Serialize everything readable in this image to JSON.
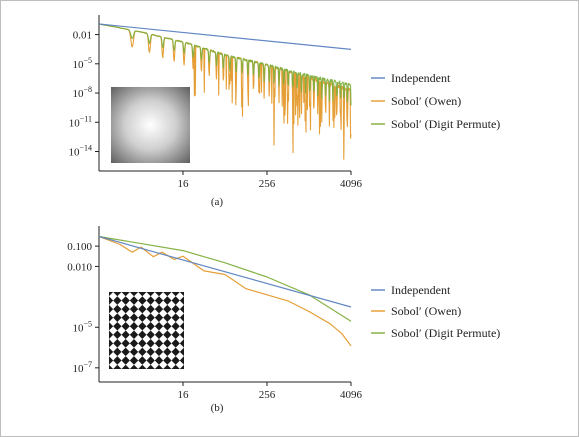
{
  "colors": {
    "independent": "#5b82c0",
    "owen": "#e59a2c",
    "digit": "#7fae3c"
  },
  "chart_data": [
    {
      "type": "line",
      "caption": "(a)",
      "log_x": true,
      "log_y": true,
      "xlim": [
        1,
        4096
      ],
      "ylim": [
        1e-16,
        0.5
      ],
      "xticks": [
        {
          "v": 16,
          "label": "16"
        },
        {
          "v": 256,
          "label": "256"
        },
        {
          "v": 4096,
          "label": "4096"
        }
      ],
      "yticks": [
        {
          "v": 0.01,
          "label": "0.01",
          "sup": ""
        },
        {
          "v": 1e-05,
          "label": "10",
          "sup": "−5"
        },
        {
          "v": 1e-08,
          "label": "10",
          "sup": "−8"
        },
        {
          "v": 1e-11,
          "label": "10",
          "sup": "−11"
        },
        {
          "v": 1e-14,
          "label": "10",
          "sup": "−14"
        }
      ],
      "legend": [
        "Independent",
        "Sobol′ (Owen)",
        "Sobol′ (Digit Permute)"
      ],
      "inset": "gaussian",
      "series": [
        {
          "name": "Independent",
          "color_key": "independent",
          "pattern": "straight",
          "x": [
            1,
            4096
          ],
          "y": [
            0.12,
            0.0003
          ]
        },
        {
          "name": "Sobol′ (Owen)",
          "color_key": "owen",
          "pattern": "osc",
          "amp": 3.2,
          "deep": true,
          "x": [
            1,
            4,
            16,
            64,
            256,
            1024,
            4096
          ],
          "y": [
            0.12,
            0.02,
            0.002,
            0.0001,
            1e-05,
            5e-07,
            3e-08
          ]
        },
        {
          "name": "Sobol′ (Digit Permute)",
          "color_key": "digit",
          "pattern": "osc",
          "amp": 1.6,
          "deep": false,
          "x": [
            1,
            4,
            16,
            64,
            256,
            1024,
            4096
          ],
          "y": [
            0.12,
            0.02,
            0.002,
            0.0001,
            1e-05,
            8e-07,
            1e-07
          ]
        }
      ]
    },
    {
      "type": "line",
      "caption": "(b)",
      "log_x": true,
      "log_y": true,
      "xlim": [
        1,
        4096
      ],
      "ylim": [
        2e-08,
        0.7
      ],
      "xticks": [
        {
          "v": 16,
          "label": "16"
        },
        {
          "v": 256,
          "label": "256"
        },
        {
          "v": 4096,
          "label": "4096"
        }
      ],
      "yticks": [
        {
          "v": 0.1,
          "label": "0.100",
          "sup": ""
        },
        {
          "v": 0.01,
          "label": "0.010",
          "sup": ""
        },
        {
          "v": 1e-05,
          "label": "10",
          "sup": "−5"
        },
        {
          "v": 1e-07,
          "label": "10",
          "sup": "−7"
        }
      ],
      "legend": [
        "Independent",
        "Sobol′ (Owen)",
        "Sobol′ (Digit Permute)"
      ],
      "inset": "checker",
      "series": [
        {
          "name": "Independent",
          "color_key": "independent",
          "pattern": "straight",
          "x": [
            1,
            4096
          ],
          "y": [
            0.3,
            0.0001
          ]
        },
        {
          "name": "Sobol′ (Owen)",
          "color_key": "owen",
          "pattern": "jag",
          "x": [
            1,
            2,
            3,
            4,
            6,
            8,
            12,
            16,
            32,
            64,
            128,
            256,
            512,
            1024,
            2048,
            3000,
            4096
          ],
          "y": [
            0.3,
            0.12,
            0.05,
            0.09,
            0.03,
            0.05,
            0.022,
            0.032,
            0.006,
            0.004,
            0.0008,
            0.0004,
            0.0002,
            6e-05,
            1.5e-05,
            5e-06,
            1.2e-06
          ]
        },
        {
          "name": "Sobol′ (Digit Permute)",
          "color_key": "digit",
          "pattern": "straight",
          "x": [
            1,
            16,
            64,
            256,
            1024,
            4096
          ],
          "y": [
            0.3,
            0.06,
            0.015,
            0.003,
            0.0004,
            2e-05
          ]
        }
      ]
    }
  ]
}
